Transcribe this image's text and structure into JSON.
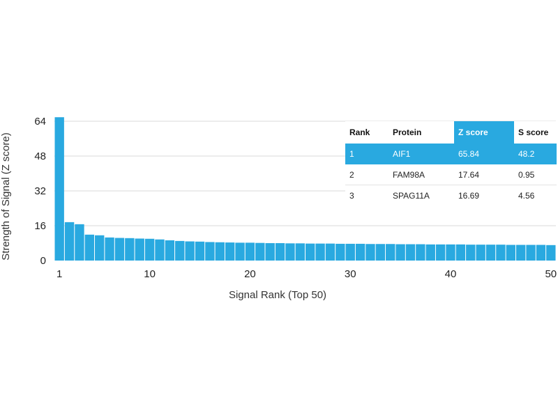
{
  "chart_data": {
    "type": "bar",
    "xlabel": "Signal Rank (Top 50)",
    "ylabel": "Strength of Signal (Z score)",
    "xticks": [
      1,
      10,
      20,
      30,
      40,
      50
    ],
    "yticks": [
      0,
      16,
      32,
      48,
      64
    ],
    "ylim": [
      0,
      64
    ],
    "xlim": [
      0.5,
      50.5
    ],
    "grid": "horizontal",
    "bar_color": "#29a9e0",
    "ranks": [
      1,
      2,
      3,
      4,
      5,
      6,
      7,
      8,
      9,
      10,
      11,
      12,
      13,
      14,
      15,
      16,
      17,
      18,
      19,
      20,
      21,
      22,
      23,
      24,
      25,
      26,
      27,
      28,
      29,
      30,
      31,
      32,
      33,
      34,
      35,
      36,
      37,
      38,
      39,
      40,
      41,
      42,
      43,
      44,
      45,
      46,
      47,
      48,
      49,
      50
    ],
    "values": [
      65.84,
      17.64,
      16.69,
      11.9,
      11.6,
      10.6,
      10.4,
      10.3,
      10.1,
      10.0,
      9.7,
      9.3,
      9.0,
      8.8,
      8.7,
      8.5,
      8.4,
      8.3,
      8.2,
      8.2,
      8.1,
      8.0,
      8.0,
      7.9,
      7.9,
      7.8,
      7.8,
      7.8,
      7.7,
      7.7,
      7.7,
      7.6,
      7.6,
      7.6,
      7.5,
      7.5,
      7.5,
      7.4,
      7.4,
      7.4,
      7.4,
      7.3,
      7.3,
      7.3,
      7.3,
      7.2,
      7.2,
      7.2,
      7.2,
      7.1
    ]
  },
  "table": {
    "headers": [
      "Rank",
      "Protein",
      "Z score",
      "S score"
    ],
    "highlight_color": "#29a9e0",
    "rows": [
      [
        "1",
        "AIF1",
        "65.84",
        "48.2"
      ],
      [
        "2",
        "FAM98A",
        "17.64",
        "0.95"
      ],
      [
        "3",
        "SPAG11A",
        "16.69",
        "4.56"
      ]
    ]
  }
}
